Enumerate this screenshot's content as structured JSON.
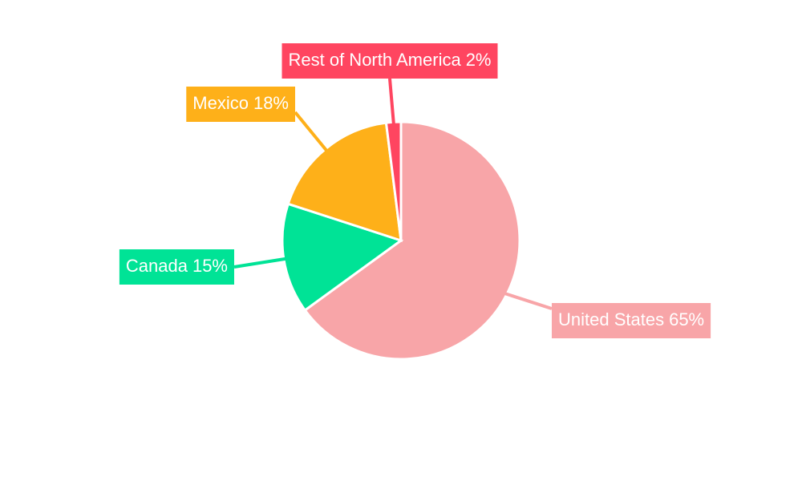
{
  "chart_data": {
    "type": "pie",
    "categories": [
      "United States",
      "Canada",
      "Mexico",
      "Rest of North America"
    ],
    "values": [
      65,
      15,
      18,
      2
    ],
    "value_labels": [
      "65%",
      "15%",
      "18%",
      "2%"
    ],
    "colors": [
      "#f8a5a8",
      "#00e396",
      "#feb019",
      "#ff4560"
    ]
  }
}
